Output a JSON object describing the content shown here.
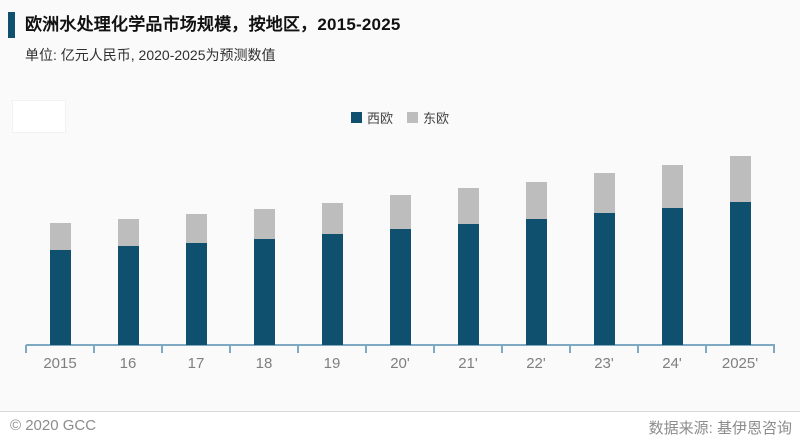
{
  "header": {
    "title": "欧洲水处理化学品市场规模，按地区，2015-2025",
    "subtitle": "单位: 亿元人民币, 2020-2025为预测数值"
  },
  "legend": {
    "items": [
      {
        "label": "西欧",
        "color": "#0f506f"
      },
      {
        "label": "东欧",
        "color": "#bdbdbd"
      }
    ]
  },
  "chart_data": {
    "type": "bar",
    "stacked": true,
    "title": "欧洲水处理化学品市场规模，按地区，2015-2025",
    "unit": "亿元人民币",
    "note": "2020-2025为预测数值",
    "categories": [
      "2015",
      "16",
      "17",
      "18",
      "19",
      "20'",
      "21'",
      "22'",
      "23'",
      "24'",
      "2025'"
    ],
    "series": [
      {
        "name": "西欧",
        "color": "#0f506f",
        "values": [
          95,
          99,
          102,
          106,
          111,
          116,
          121,
          126,
          132,
          137,
          143
        ]
      },
      {
        "name": "东欧",
        "color": "#bdbdbd",
        "values": [
          27,
          27,
          29,
          30,
          31,
          34,
          36,
          37,
          40,
          43,
          46
        ]
      }
    ],
    "totals": [
      122,
      126,
      131,
      136,
      142,
      150,
      157,
      163,
      172,
      180,
      189
    ],
    "xlabel": "",
    "ylabel": "",
    "ylim": [
      0,
      200
    ],
    "grid": false,
    "y_axis_visible": false,
    "legend_position": "top-center"
  },
  "footer": {
    "copyright": "© 2020 GCC",
    "source": "数据来源: 基伊恩咨询"
  },
  "colors": {
    "background": "#fafafa",
    "title_accent": "#0f506f",
    "axis": "#7fa8c2",
    "tick_label": "#7f7f7f",
    "footer_text": "#8c8c8c"
  }
}
